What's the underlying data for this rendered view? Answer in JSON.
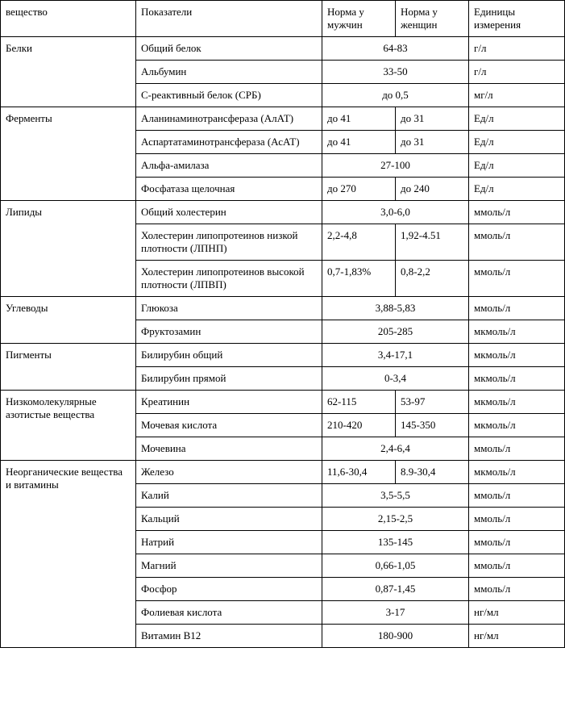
{
  "table": {
    "type": "table",
    "background_color": "#ffffff",
    "border_color": "#000000",
    "font_family": "Times New Roman",
    "font_size_pt": 10,
    "column_widths_pct": [
      24,
      33,
      13,
      13,
      17
    ],
    "headers": {
      "substance": "вещество",
      "indicator": "Показатели",
      "norm_male": "Норма у мужчин",
      "norm_female": "Норма у женщин",
      "units": "Единицы измерения"
    },
    "groups": [
      {
        "name": "Белки",
        "rows": [
          {
            "indicator": "Общий белок",
            "combined": "64-83",
            "units": "г/л"
          },
          {
            "indicator": "Альбумин",
            "combined": "33-50",
            "units": "г/л"
          },
          {
            "indicator": "С-реактивный белок (СРБ)",
            "combined": "до 0,5",
            "units": "мг/л"
          }
        ]
      },
      {
        "name": "Ферменты",
        "rows": [
          {
            "indicator": "Аланинаминотрансфераза (АлАТ)",
            "male": "до 41",
            "female": "до 31",
            "units": "Ед/л"
          },
          {
            "indicator": "Аспартатаминотрансфераза (АсАТ)",
            "male": "до 41",
            "female": "до 31",
            "units": "Ед/л"
          },
          {
            "indicator": "Альфа-амилаза",
            "combined": "27-100",
            "units": "Ед/л"
          },
          {
            "indicator": "Фосфатаза щелочная",
            "male": "до 270",
            "female": "до 240",
            "units": "Ед/л"
          }
        ]
      },
      {
        "name": "Липиды",
        "rows": [
          {
            "indicator": "Общий холестерин",
            "combined": "3,0-6,0",
            "units": "ммоль/л"
          },
          {
            "indicator": "Холестерин липопротеинов низкой плотности (ЛПНП)",
            "male": "2,2-4,8",
            "female": "1,92-4.51",
            "units": "ммоль/л"
          },
          {
            "indicator": "Холестерин липопротеинов высокой плотности (ЛПВП)",
            "male": "0,7-1,83%",
            "female": "0,8-2,2",
            "units": "ммоль/л"
          }
        ]
      },
      {
        "name": "Углеводы",
        "rows": [
          {
            "indicator": "Глюкоза",
            "combined": "3,88-5,83",
            "units": "ммоль/л"
          },
          {
            "indicator": "Фруктозамин",
            "combined": "205-285",
            "units": "мкмоль/л"
          }
        ]
      },
      {
        "name": "Пигменты",
        "rows": [
          {
            "indicator": "Билирубин общий",
            "combined": "3,4-17,1",
            "units": "мкмоль/л"
          },
          {
            "indicator": "Билирубин прямой",
            "combined": "0-3,4",
            "units": "мкмоль/л"
          }
        ]
      },
      {
        "name": "Низкомолекулярные азотистые вещества",
        "rows": [
          {
            "indicator": "Креатинин",
            "male": "62-115",
            "female": "53-97",
            "units": "мкмоль/л"
          },
          {
            "indicator": "Мочевая кислота",
            "male": "210-420",
            "female": "145-350",
            "units": "мкмоль/л"
          },
          {
            "indicator": "Мочевина",
            "combined": "2,4-6,4",
            "units": "ммоль/л"
          }
        ]
      },
      {
        "name": "Неорганические вещества и витамины",
        "rows": [
          {
            "indicator": "Железо",
            "male": "11,6-30,4",
            "female": "8.9-30,4",
            "units": "мкмоль/л"
          },
          {
            "indicator": "Калий",
            "combined": "3,5-5,5",
            "units": "ммоль/л"
          },
          {
            "indicator": "Кальций",
            "combined": "2,15-2,5",
            "units": "ммоль/л"
          },
          {
            "indicator": "Натрий",
            "combined": "135-145",
            "units": "ммоль/л"
          },
          {
            "indicator": "Магний",
            "combined": "0,66-1,05",
            "units": "ммоль/л"
          },
          {
            "indicator": "Фосфор",
            "combined": "0,87-1,45",
            "units": "ммоль/л"
          },
          {
            "indicator": "Фолиевая кислота",
            "combined": "3-17",
            "units": "нг/мл"
          },
          {
            "indicator": "Витамин В12",
            "combined": "180-900",
            "units": "нг/мл"
          }
        ]
      }
    ]
  }
}
